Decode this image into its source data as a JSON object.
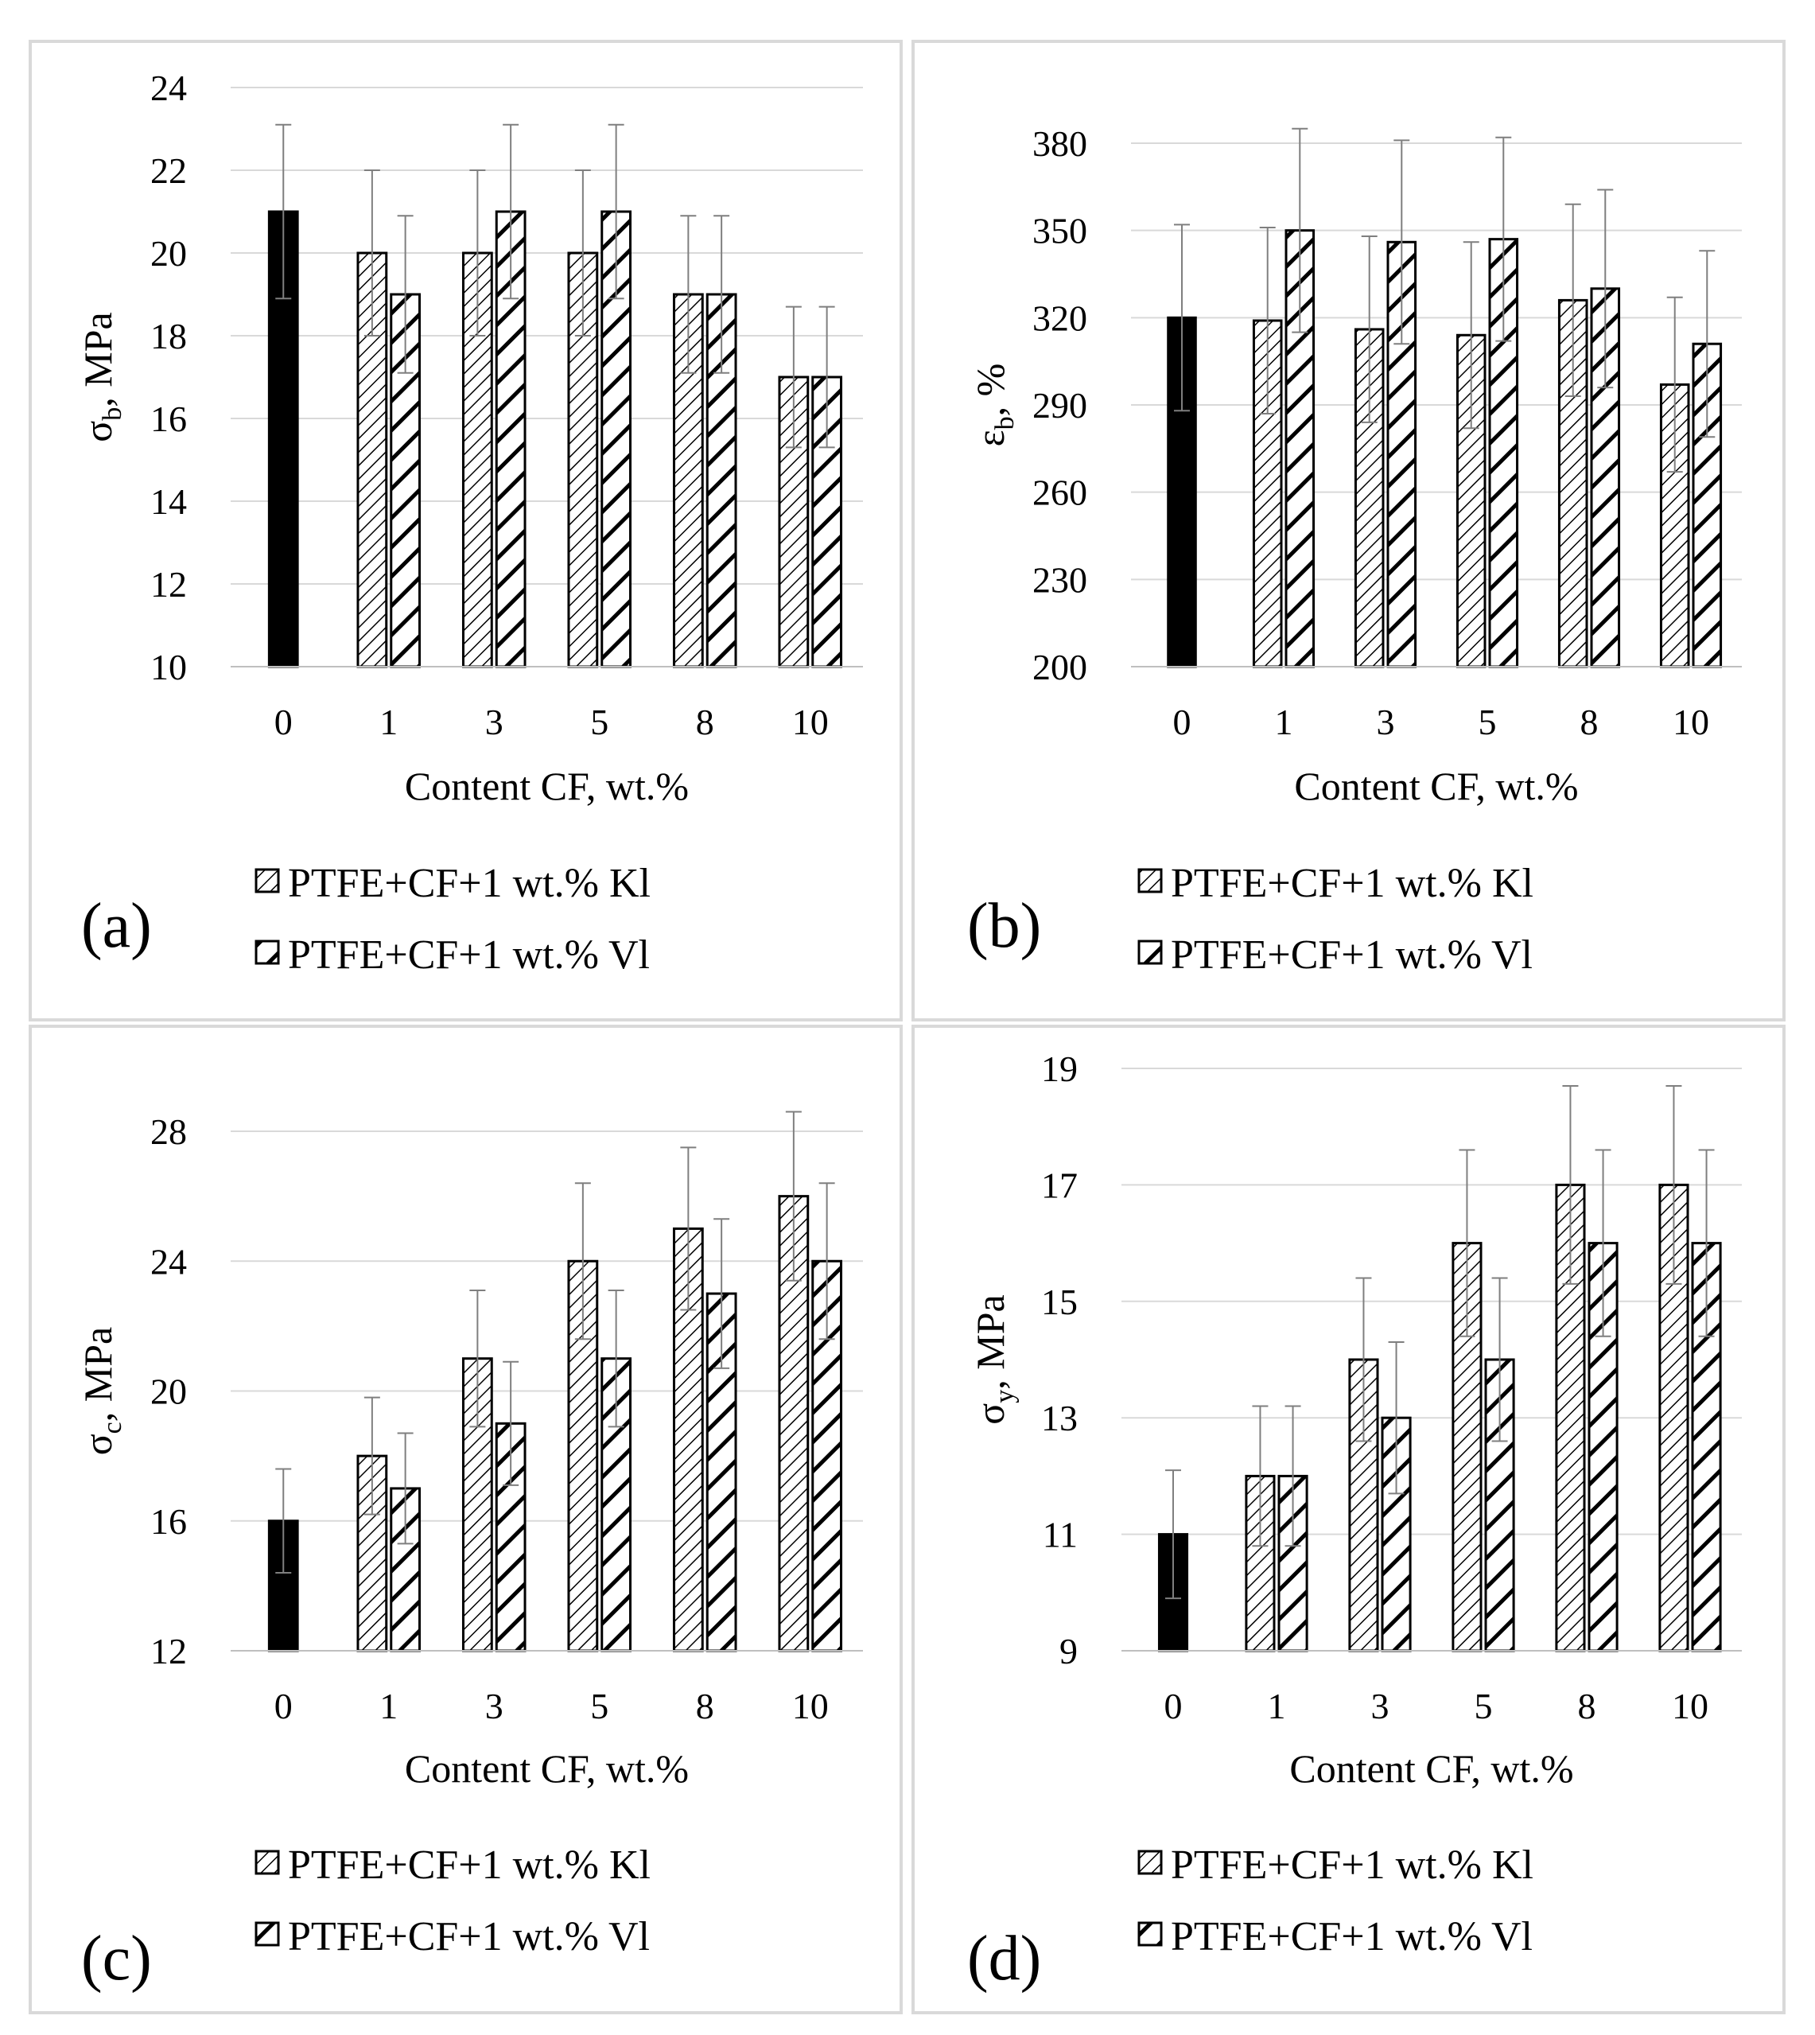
{
  "figure": {
    "legend": [
      {
        "label": "PTFE+CF+1 wt.% Kl",
        "pattern": "narrow-diagonal"
      },
      {
        "label": "PTFE+CF+1 wt.% Vl",
        "pattern": "wide-diagonal"
      }
    ],
    "colors": {
      "bar_edge": "#000000",
      "baseline_fill": "#000000",
      "grid": "#d9d9d9",
      "panel_border": "#d9d9d9"
    }
  },
  "chart_data": [
    {
      "type": "bar",
      "panel_label": "(a)",
      "categories": [
        "0",
        "1",
        "3",
        "5",
        "8",
        "10"
      ],
      "xlabel": "Content CF, wt.%",
      "ylabel_symbol": "σ",
      "ylabel_sub": "b",
      "ylabel_unit": ", MPa",
      "ylim": [
        10,
        24
      ],
      "yticks": [
        10,
        12,
        14,
        16,
        18,
        20,
        22,
        24
      ],
      "baseline": {
        "name": "PTFE",
        "category": "0",
        "value": 21,
        "error": 2.1
      },
      "series": [
        {
          "name": "PTFE+CF+1 wt.% Kl",
          "values": [
            null,
            20,
            20,
            20,
            19,
            17
          ],
          "errors": [
            null,
            2,
            2,
            2,
            1.9,
            1.7
          ]
        },
        {
          "name": "PTFE+CF+1 wt.% Vl",
          "values": [
            null,
            19,
            21,
            21,
            19,
            17
          ],
          "errors": [
            null,
            1.9,
            2.1,
            2.1,
            1.9,
            1.7
          ]
        }
      ]
    },
    {
      "type": "bar",
      "panel_label": "(b)",
      "categories": [
        "0",
        "1",
        "3",
        "5",
        "8",
        "10"
      ],
      "xlabel": "Content CF, wt.%",
      "ylabel_symbol": "ε",
      "ylabel_sub": "b",
      "ylabel_unit": ", %",
      "ylim": [
        200,
        380
      ],
      "yticks": [
        200,
        230,
        260,
        290,
        320,
        350,
        380
      ],
      "baseline": {
        "name": "PTFE",
        "category": "0",
        "value": 320,
        "error": 32
      },
      "series": [
        {
          "name": "PTFE+CF+1 wt.% Kl",
          "values": [
            null,
            319,
            316,
            314,
            326,
            297
          ],
          "errors": [
            null,
            32,
            32,
            32,
            33,
            30
          ]
        },
        {
          "name": "PTFE+CF+1 wt.% Vl",
          "values": [
            null,
            350,
            346,
            347,
            330,
            311
          ],
          "errors": [
            null,
            35,
            35,
            35,
            34,
            32
          ]
        }
      ]
    },
    {
      "type": "bar",
      "panel_label": "(c)",
      "categories": [
        "0",
        "1",
        "3",
        "5",
        "8",
        "10"
      ],
      "xlabel": "Content CF, wt.%",
      "ylabel_symbol": "σ",
      "ylabel_sub": "c",
      "ylabel_unit": ", MPa",
      "ylim": [
        12,
        28
      ],
      "yticks": [
        12,
        16,
        20,
        24,
        28
      ],
      "baseline": {
        "name": "PTFE",
        "category": "0",
        "value": 16,
        "error": 1.6
      },
      "series": [
        {
          "name": "PTFE+CF+1 wt.% Kl",
          "values": [
            null,
            18,
            21,
            24,
            25,
            26
          ],
          "errors": [
            null,
            1.8,
            2.1,
            2.4,
            2.5,
            2.6
          ]
        },
        {
          "name": "PTFE+CF+1 wt.% Vl",
          "values": [
            null,
            17,
            19,
            21,
            23,
            24
          ],
          "errors": [
            null,
            1.7,
            1.9,
            2.1,
            2.3,
            2.4
          ]
        }
      ]
    },
    {
      "type": "bar",
      "panel_label": "(d)",
      "categories": [
        "0",
        "1",
        "3",
        "5",
        "8",
        "10"
      ],
      "xlabel": "Content CF, wt.%",
      "ylabel_symbol": "σ",
      "ylabel_sub": "y",
      "ylabel_unit": ", MPa",
      "ylim": [
        9,
        19
      ],
      "yticks": [
        9,
        11,
        13,
        15,
        17,
        19
      ],
      "baseline": {
        "name": "PTFE",
        "category": "0",
        "value": 11,
        "error": 1.1
      },
      "series": [
        {
          "name": "PTFE+CF+1 wt.% Kl",
          "values": [
            null,
            12,
            14,
            16,
            17,
            17
          ],
          "errors": [
            null,
            1.2,
            1.4,
            1.6,
            1.7,
            1.7
          ]
        },
        {
          "name": "PTFE+CF+1 wt.% Vl",
          "values": [
            null,
            12,
            13,
            14,
            16,
            16
          ],
          "errors": [
            null,
            1.2,
            1.3,
            1.4,
            1.6,
            1.6
          ]
        }
      ]
    }
  ]
}
